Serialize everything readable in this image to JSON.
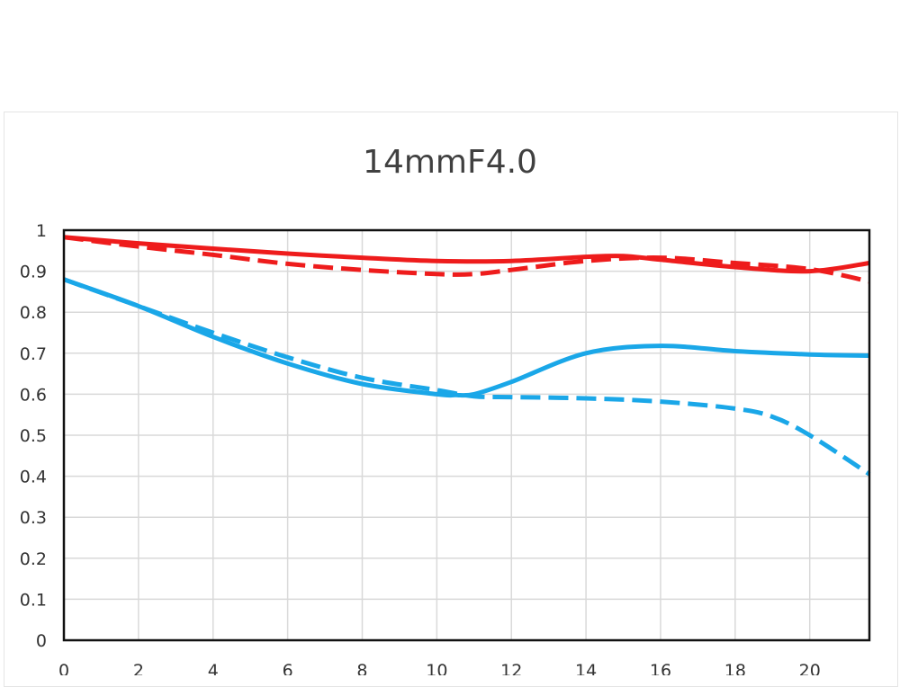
{
  "chart_data": {
    "type": "line",
    "title": "14mmF4.0",
    "xlabel": "",
    "ylabel": "",
    "xlim": [
      0,
      21.6
    ],
    "ylim": [
      0,
      1
    ],
    "xticks": [
      "0",
      "2",
      "4",
      "6",
      "8",
      "10",
      "12",
      "14",
      "16",
      "18",
      "20"
    ],
    "yticks": [
      "0",
      "0.1",
      "0.2",
      "0.3",
      "0.4",
      "0.5",
      "0.6",
      "0.7",
      "0.8",
      "0.9",
      "1"
    ],
    "grid": true,
    "series": [
      {
        "color": "#ee1c1c",
        "dash": false,
        "x": [
          0,
          2,
          4,
          6,
          8,
          10,
          12,
          14,
          15,
          16,
          18,
          20,
          21.6
        ],
        "y": [
          0.983,
          0.968,
          0.955,
          0.943,
          0.933,
          0.925,
          0.925,
          0.935,
          0.937,
          0.928,
          0.91,
          0.9,
          0.92
        ]
      },
      {
        "color": "#ee1c1c",
        "dash": true,
        "x": [
          0,
          2,
          4,
          6,
          8,
          10,
          11,
          12,
          14,
          16,
          18,
          20,
          21.6
        ],
        "y": [
          0.983,
          0.96,
          0.94,
          0.918,
          0.903,
          0.893,
          0.893,
          0.903,
          0.925,
          0.933,
          0.92,
          0.905,
          0.875
        ]
      },
      {
        "color": "#1aa7e8",
        "dash": false,
        "x": [
          0,
          2,
          4,
          6,
          8,
          10,
          10.5,
          11,
          12,
          14,
          16,
          18,
          20,
          21.6
        ],
        "y": [
          0.88,
          0.815,
          0.74,
          0.675,
          0.625,
          0.6,
          0.598,
          0.6,
          0.63,
          0.7,
          0.718,
          0.705,
          0.697,
          0.694
        ]
      },
      {
        "color": "#1aa7e8",
        "dash": true,
        "x": [
          0,
          2,
          4,
          6,
          8,
          10,
          11,
          12,
          14,
          16,
          18,
          19,
          20,
          21.6
        ],
        "y": [
          0.88,
          0.815,
          0.75,
          0.69,
          0.64,
          0.61,
          0.595,
          0.593,
          0.59,
          0.582,
          0.565,
          0.545,
          0.5,
          0.405
        ]
      }
    ]
  }
}
